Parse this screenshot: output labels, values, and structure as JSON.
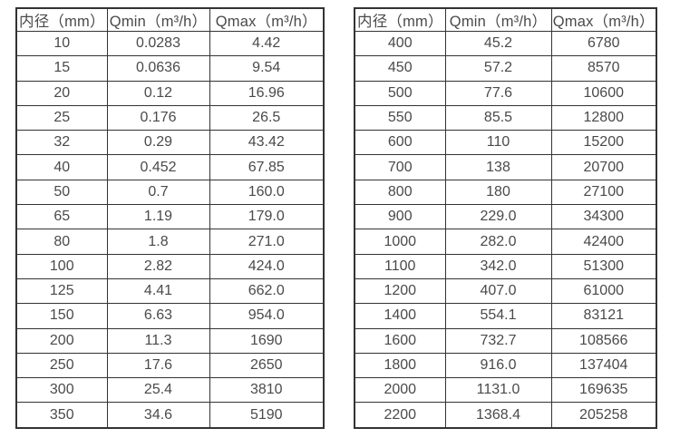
{
  "colors": {
    "background": "#ffffff",
    "border": "#333333",
    "text": "#4a4a4a"
  },
  "tables": [
    {
      "name": "flow-spec-small-diameters",
      "headers": [
        "内径（mm）",
        "Qmin（m³/h）",
        "Qmax（m³/h）"
      ],
      "rows": [
        [
          "10",
          "0.0283",
          "4.42"
        ],
        [
          "15",
          "0.0636",
          "9.54"
        ],
        [
          "20",
          "0.12",
          "16.96"
        ],
        [
          "25",
          "0.176",
          "26.5"
        ],
        [
          "32",
          "0.29",
          "43.42"
        ],
        [
          "40",
          "0.452",
          "67.85"
        ],
        [
          "50",
          "0.7",
          "160.0"
        ],
        [
          "65",
          "1.19",
          "179.0"
        ],
        [
          "80",
          "1.8",
          "271.0"
        ],
        [
          "100",
          "2.82",
          "424.0"
        ],
        [
          "125",
          "4.41",
          "662.0"
        ],
        [
          "150",
          "6.63",
          "954.0"
        ],
        [
          "200",
          "11.3",
          "1690"
        ],
        [
          "250",
          "17.6",
          "2650"
        ],
        [
          "300",
          "25.4",
          "3810"
        ],
        [
          "350",
          "34.6",
          "5190"
        ]
      ]
    },
    {
      "name": "flow-spec-large-diameters",
      "headers": [
        "内径（mm）",
        "Qmin（m³/h）",
        "Qmax（m³/h）"
      ],
      "rows": [
        [
          "400",
          "45.2",
          "6780"
        ],
        [
          "450",
          "57.2",
          "8570"
        ],
        [
          "500",
          "77.6",
          "10600"
        ],
        [
          "550",
          "85.5",
          "12800"
        ],
        [
          "600",
          "110",
          "15200"
        ],
        [
          "700",
          "138",
          "20700"
        ],
        [
          "800",
          "180",
          "27100"
        ],
        [
          "900",
          "229.0",
          "34300"
        ],
        [
          "1000",
          "282.0",
          "42400"
        ],
        [
          "1100",
          "342.0",
          "51300"
        ],
        [
          "1200",
          "407.0",
          "61000"
        ],
        [
          "1400",
          "554.1",
          "83121"
        ],
        [
          "1600",
          "732.7",
          "108566"
        ],
        [
          "1800",
          "916.0",
          "137404"
        ],
        [
          "2000",
          "1131.0",
          "169635"
        ],
        [
          "2200",
          "1368.4",
          "205258"
        ]
      ]
    }
  ]
}
